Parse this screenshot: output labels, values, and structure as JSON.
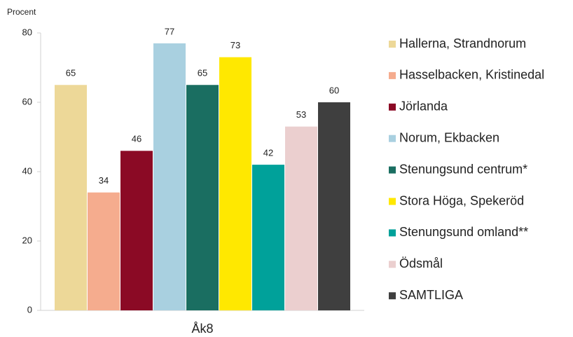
{
  "chart_data": {
    "type": "bar",
    "ylabel": "Procent",
    "categories": [
      "Åk8"
    ],
    "series": [
      {
        "name": "Hallerna, Strandnorum",
        "color": "#EDD898",
        "values": [
          65
        ]
      },
      {
        "name": "Hasselbacken, Kristinedal",
        "color": "#F5AC8E",
        "values": [
          34
        ]
      },
      {
        "name": "Jörlanda",
        "color": "#8B0A25",
        "values": [
          46
        ]
      },
      {
        "name": "Norum, Ekbacken",
        "color": "#A9D0E0",
        "values": [
          77
        ]
      },
      {
        "name": "Stenungsund centrum*",
        "color": "#1A6E61",
        "values": [
          65
        ]
      },
      {
        "name": "Stora Höga, Spekeröd",
        "color": "#FFE800",
        "values": [
          73
        ]
      },
      {
        "name": "Stenungsund omland**",
        "color": "#00A19A",
        "values": [
          42
        ]
      },
      {
        "name": "Ödsmål",
        "color": "#EBCFCF",
        "values": [
          53
        ]
      },
      {
        "name": "SAMTLIGA",
        "color": "#3F3F3F",
        "values": [
          60
        ]
      }
    ],
    "ylim": [
      0,
      80
    ],
    "yticks": [
      0,
      20,
      40,
      60,
      80
    ],
    "grid": false,
    "legend": "right"
  }
}
